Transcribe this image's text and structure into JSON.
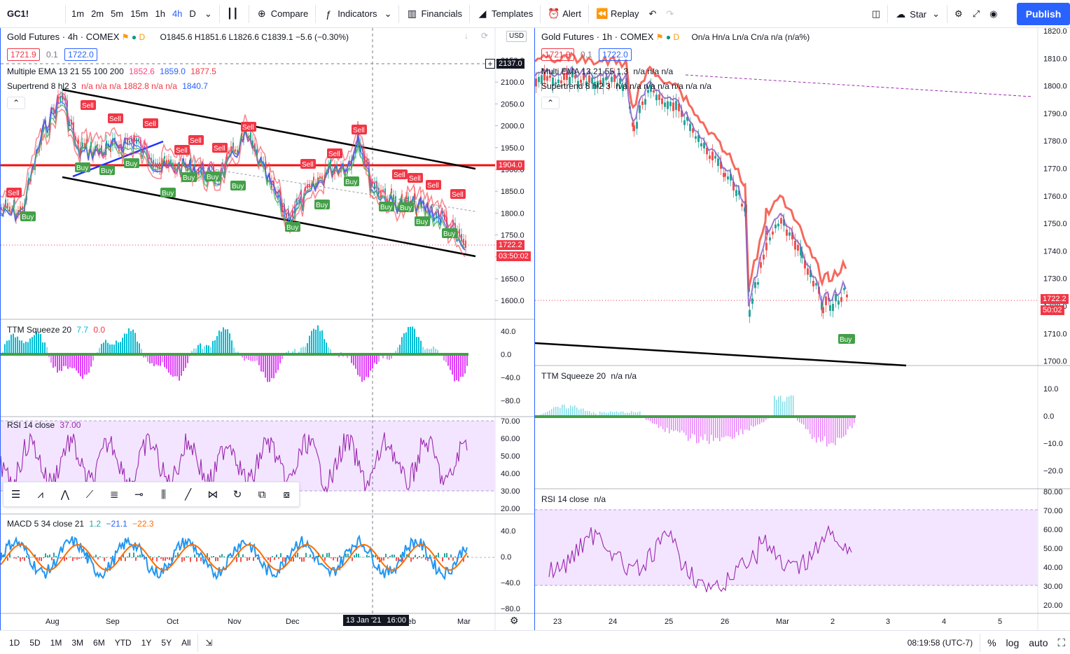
{
  "topbar": {
    "symbol": "GC1!",
    "intervals": [
      "1m",
      "2m",
      "5m",
      "15m",
      "1h",
      "4h",
      "D"
    ],
    "active_interval": "4h",
    "compare": "Compare",
    "indicators": "Indicators",
    "financials": "Financials",
    "templates": "Templates",
    "alert": "Alert",
    "replay": "Replay",
    "star": "Star",
    "publish": "Publish"
  },
  "left_chart": {
    "title": "Gold Futures · 4h · COMEX",
    "badge_d": "D",
    "ohlc": "O1845.6  H1851.6  L1826.6  C1839.1  −5.6 (−0.30%)",
    "bid": "1721.9",
    "spread": "0.1",
    "ask": "1722.0",
    "ema_label": "Multiple EMA 13 21 55 100 200",
    "ema_vals": [
      "1852.6",
      "1859.0",
      "1877.5"
    ],
    "st_label": "Supertrend 8 hl2 3",
    "st_vals": "n/a  n/a  n/a  1882.8  n/a  n/a",
    "st_val_last": "1840.7",
    "currency": "USD",
    "price_ticks": [
      "2150.0",
      "2100.0",
      "2050.0",
      "2000.0",
      "1950.0",
      "1900.0",
      "1850.0",
      "1800.0",
      "1750.0",
      "1700.0",
      "1650.0",
      "1600.0"
    ],
    "tag_top": "2137.0",
    "tag_red": "1904.0",
    "tag_last": "1722.2",
    "tag_timer": "03:50:02",
    "ttm_label": "TTM Squeeze 20",
    "ttm_v1": "7.7",
    "ttm_v2": "0.0",
    "ttm_ticks": [
      "40.0",
      "0.0",
      "−40.0",
      "−80.0"
    ],
    "rsi_label": "RSI 14 close",
    "rsi_val": "37.00",
    "rsi_ticks": [
      "70.00",
      "60.00",
      "50.00",
      "40.00",
      "30.00",
      "20.00"
    ],
    "macd_label": "MACD 5 34 close 21",
    "macd_v1": "1.2",
    "macd_v2": "−21.1",
    "macd_v3": "−22.3",
    "macd_ticks": [
      "40.0",
      "0.0",
      "−40.0",
      "−80.0"
    ],
    "time_ticks": [
      "Aug",
      "Sep",
      "Oct",
      "Nov",
      "Dec",
      "Feb",
      "Mar"
    ],
    "crosshair_date": "13 Jan '21",
    "crosshair_time": "16:00"
  },
  "right_chart": {
    "title": "Gold Futures · 1h · COMEX",
    "badge_d": "D",
    "ohlc": "On/a  Hn/a  Ln/a  Cn/a  n/a (n/a%)",
    "bid": "1721.9",
    "spread": "0.1",
    "ask": "1722.0",
    "ema_label": "Multi EMA 13 21 55 1,3",
    "ema_vals": "n/a  n/a  n/a",
    "st_label": "Supertrend 8 hl2 3",
    "st_vals": "n/a  n/a  n/a  n/a  n/a  n/a  n/a",
    "price_ticks": [
      "1820.0",
      "1810.0",
      "1800.0",
      "1790.0",
      "1780.0",
      "1770.0",
      "1760.0",
      "1750.0",
      "1740.0",
      "1730.0",
      "1720.0",
      "1710.0",
      "1700.0"
    ],
    "tag_last": "1722.2",
    "tag_timer": "50:02",
    "ttm_label": "TTM Squeeze 20",
    "ttm_vals": "n/a  n/a",
    "ttm_ticks": [
      "10.0",
      "0.0",
      "−10.0",
      "−20.0"
    ],
    "rsi_label": "RSI 14 close",
    "rsi_val": "n/a",
    "rsi_ticks": [
      "80.00",
      "70.00",
      "60.00",
      "50.00",
      "40.00",
      "30.00",
      "20.00"
    ],
    "time_ticks": [
      "23",
      "24",
      "25",
      "26",
      "Mar",
      "2",
      "3",
      "4",
      "5"
    ]
  },
  "signals": {
    "buy": "Buy",
    "sell": "Sell"
  },
  "bottombar": {
    "ranges": [
      "1D",
      "5D",
      "1M",
      "3M",
      "6M",
      "YTD",
      "1Y",
      "5Y",
      "All"
    ],
    "clock": "08:19:58 (UTC-7)",
    "percent": "%",
    "log": "log",
    "auto": "auto"
  },
  "colors": {
    "accent": "#2962ff",
    "red": "#f23645",
    "green": "#089981",
    "rsi_fill": "#f3e5ff",
    "purple": "#9c27b0"
  }
}
